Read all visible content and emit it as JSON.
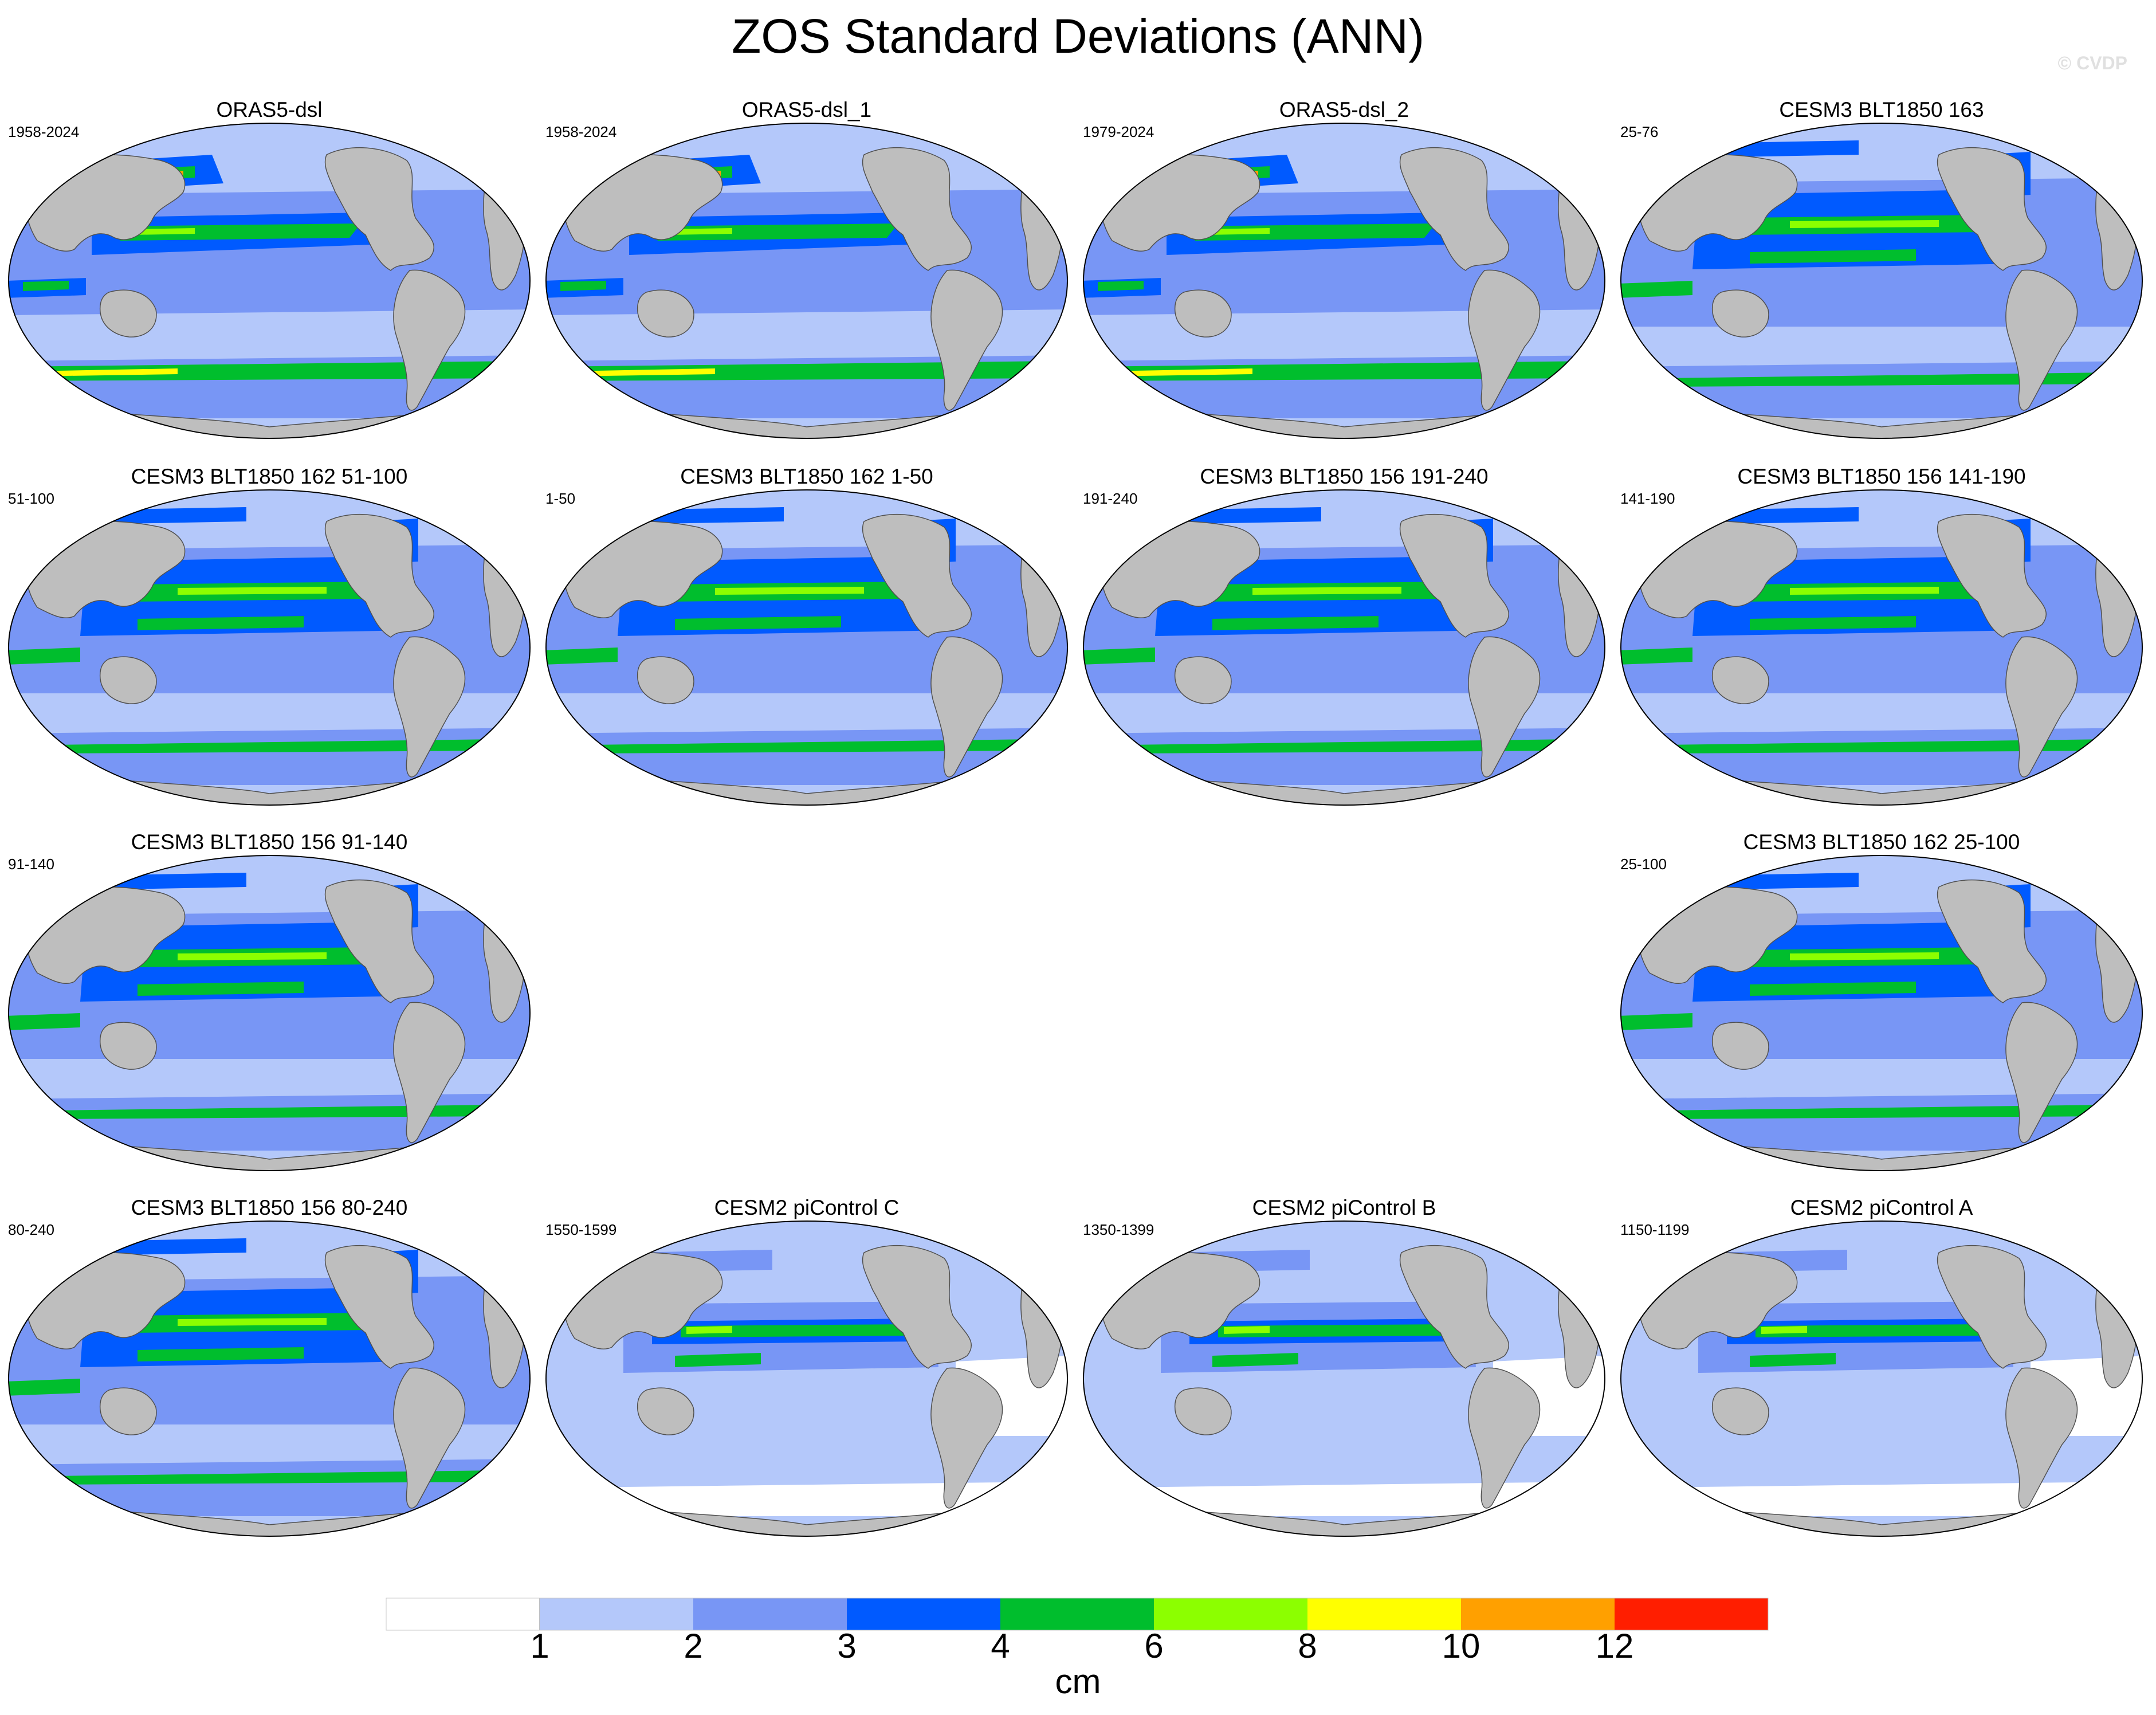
{
  "title": "ZOS Standard Deviations (ANN)",
  "watermark": "© CVDP",
  "panels": [
    {
      "title": "ORAS5-dsl",
      "years": "1958-2024",
      "style": "obs"
    },
    {
      "title": "ORAS5-dsl_1",
      "years": "1958-2024",
      "style": "obs"
    },
    {
      "title": "ORAS5-dsl_2",
      "years": "1979-2024",
      "style": "obs"
    },
    {
      "title": "CESM3 BLT1850 163",
      "years": "25-76",
      "style": "cesm3"
    },
    {
      "title": "CESM3 BLT1850 162 51-100",
      "years": "51-100",
      "style": "cesm3"
    },
    {
      "title": "CESM3 BLT1850 162 1-50",
      "years": "1-50",
      "style": "cesm3"
    },
    {
      "title": "CESM3 BLT1850 156 191-240",
      "years": "191-240",
      "style": "cesm3"
    },
    {
      "title": "CESM3 BLT1850 156 141-190",
      "years": "141-190",
      "style": "cesm3"
    },
    {
      "title": "CESM3 BLT1850 156 91-140",
      "years": "91-140",
      "style": "cesm3"
    },
    {
      "title": "CESM3 BLT1850 162 25-100",
      "years": "25-100",
      "style": "cesm3"
    },
    {
      "title": "CESM3 BLT1850 156 80-240",
      "years": "80-240",
      "style": "cesm3"
    },
    {
      "title": "CESM2 piControl C",
      "years": "1550-1599",
      "style": "cesm2"
    },
    {
      "title": "CESM2 piControl B",
      "years": "1350-1399",
      "style": "cesm2"
    },
    {
      "title": "CESM2 piControl A",
      "years": "1150-1199",
      "style": "cesm2"
    }
  ],
  "colorbar": {
    "colors": [
      "#ffffff",
      "#b4c8fa",
      "#7896f5",
      "#005aff",
      "#00be2d",
      "#8cff00",
      "#ffff00",
      "#ffa000",
      "#ff1e00"
    ],
    "labels": [
      "1",
      "2",
      "3",
      "4",
      "6",
      "8",
      "10",
      "12"
    ],
    "units": "cm"
  }
}
